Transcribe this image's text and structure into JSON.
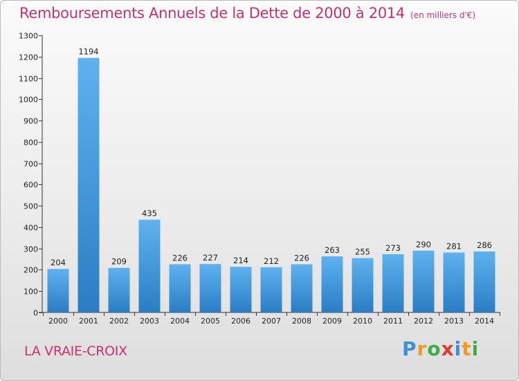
{
  "chart_data": {
    "type": "bar",
    "title": "Remboursements Annuels de la Dette de 2000 à 2014",
    "unit_note": "(en milliers d'€)",
    "categories": [
      "2000",
      "2001",
      "2002",
      "2003",
      "2004",
      "2005",
      "2006",
      "2007",
      "2008",
      "2009",
      "2010",
      "2011",
      "2012",
      "2013",
      "2014"
    ],
    "values": [
      204,
      1194,
      209,
      435,
      226,
      227,
      214,
      212,
      226,
      263,
      255,
      273,
      290,
      281,
      286
    ],
    "ylim": [
      0,
      1300
    ],
    "yticks": [
      0,
      100,
      200,
      300,
      400,
      500,
      600,
      700,
      800,
      900,
      1000,
      1100,
      1200,
      1300
    ],
    "xlabel": "",
    "ylabel": "",
    "grid": false,
    "bar_color_top": "#5fb2ee",
    "bar_color_bottom": "#2a7dc4"
  },
  "footer": {
    "place": "LA VRAIE-CROIX",
    "brand_letters": [
      {
        "ch": "P",
        "color": "#3c8fd8"
      },
      {
        "ch": "r",
        "color": "#f39a1e"
      },
      {
        "ch": "o",
        "color": "#3fae49"
      },
      {
        "ch": "x",
        "color": "#e23a30"
      },
      {
        "ch": "i",
        "color": "#3c8fd8"
      },
      {
        "ch": "t",
        "color": "#f39a1e"
      },
      {
        "ch": "i",
        "color": "#3fae49"
      }
    ]
  }
}
